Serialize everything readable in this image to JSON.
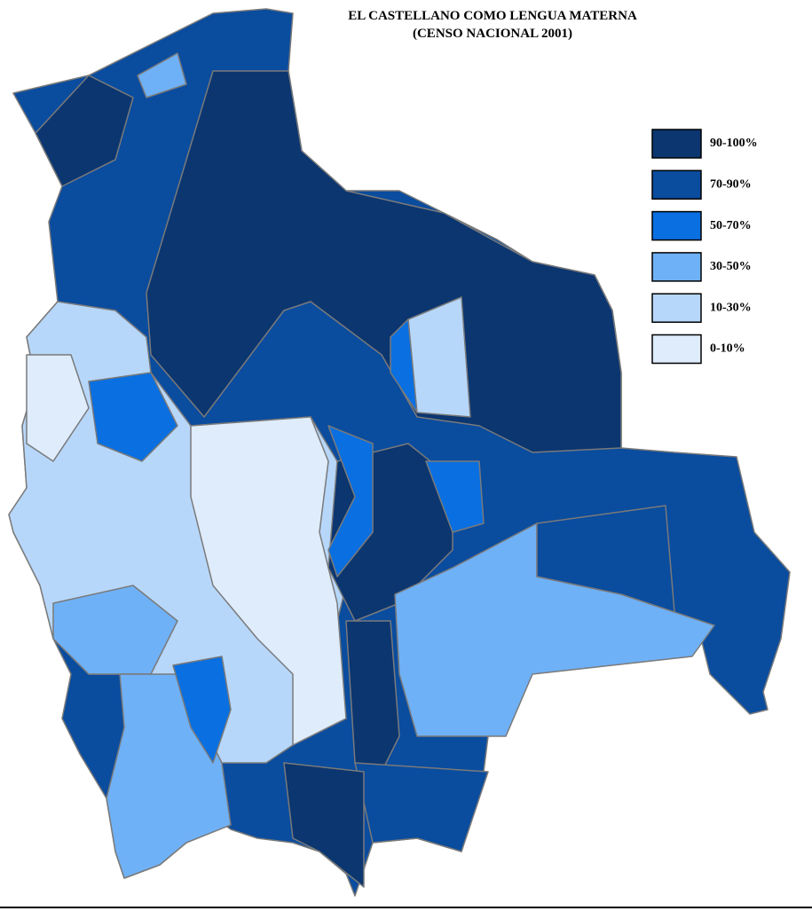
{
  "title": [
    "EL CASTELLANO COMO LENGUA MATERNA",
    "(CENSO NACIONAL 2001)"
  ],
  "legend": [
    {
      "label": "90-100%",
      "color": "#0b3670"
    },
    {
      "label": "70-90%",
      "color": "#0a4c9e"
    },
    {
      "label": "50-70%",
      "color": "#0a6fe0"
    },
    {
      "label": "30-50%",
      "color": "#6fb1f6"
    },
    {
      "label": "10-30%",
      "color": "#b7d7fa"
    },
    {
      "label": "0-10%",
      "color": "#deecfc"
    }
  ]
}
